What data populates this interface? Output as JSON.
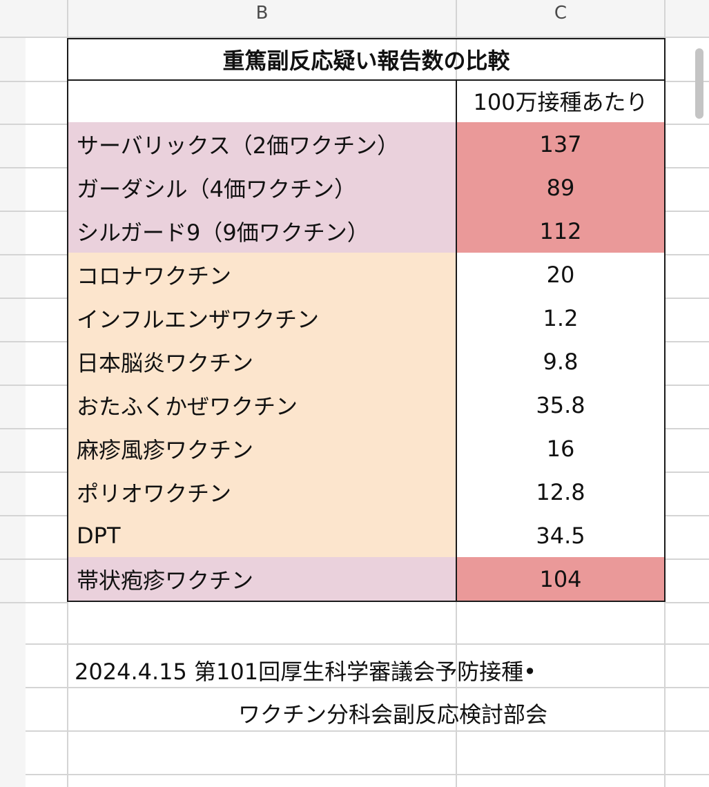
{
  "columns": [
    "B",
    "C"
  ],
  "table": {
    "title": "重篤副反応疑い報告数の比較",
    "subheader": "100万接種あたり",
    "rows": [
      {
        "label": "サーバリックス（2価ワクチン）",
        "value": "137",
        "label_color": "#ead1dc",
        "value_color": "#ea9999"
      },
      {
        "label": "ガーダシル（4価ワクチン）",
        "value": "89",
        "label_color": "#ead1dc",
        "value_color": "#ea9999"
      },
      {
        "label": "シルガード9（9価ワクチン）",
        "value": "112",
        "label_color": "#ead1dc",
        "value_color": "#ea9999"
      },
      {
        "label": "コロナワクチン",
        "value": "20",
        "label_color": "#fce5cd",
        "value_color": "#ffffff"
      },
      {
        "label": "インフルエンザワクチン",
        "value": "1.2",
        "label_color": "#fce5cd",
        "value_color": "#ffffff"
      },
      {
        "label": "日本脳炎ワクチン",
        "value": "9.8",
        "label_color": "#fce5cd",
        "value_color": "#ffffff"
      },
      {
        "label": "おたふくかぜワクチン",
        "value": "35.8",
        "label_color": "#fce5cd",
        "value_color": "#ffffff"
      },
      {
        "label": "麻疹風疹ワクチン",
        "value": "16",
        "label_color": "#fce5cd",
        "value_color": "#ffffff"
      },
      {
        "label": "ポリオワクチン",
        "value": "12.8",
        "label_color": "#fce5cd",
        "value_color": "#ffffff"
      },
      {
        "label": "DPT",
        "value": "34.5",
        "label_color": "#fce5cd",
        "value_color": "#ffffff"
      },
      {
        "label": "帯状疱疹ワクチン",
        "value": "104",
        "label_color": "#ead1dc",
        "value_color": "#ea9999"
      }
    ]
  },
  "source_note": {
    "line1": "2024.4.15  第101回厚生科学審議会予防接種•",
    "line2": "ワクチン分科会副反応検討部会"
  }
}
